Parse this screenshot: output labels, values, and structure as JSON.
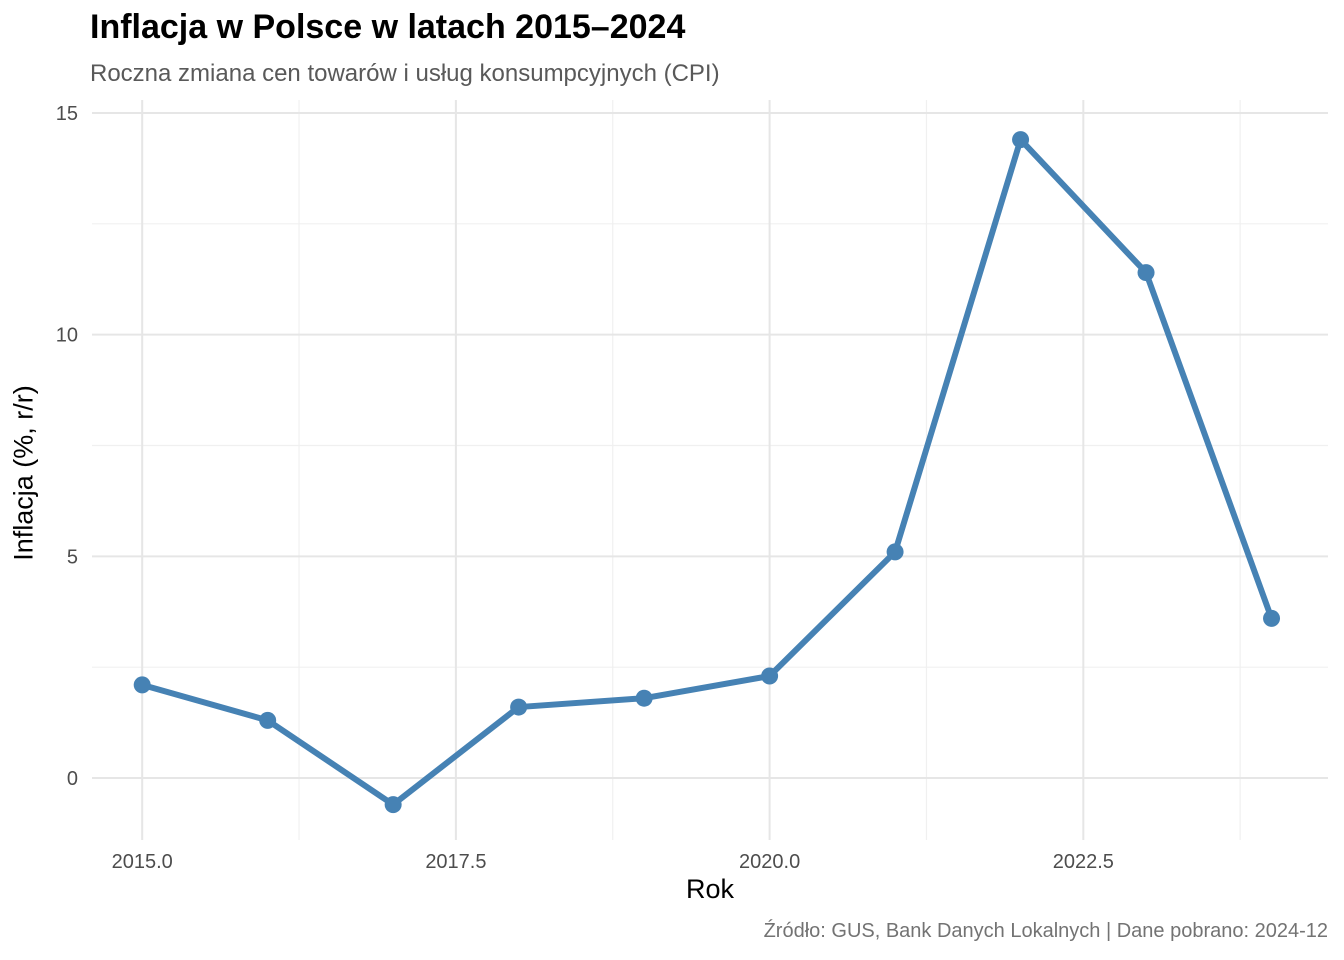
{
  "chart_data": {
    "type": "line",
    "title": "Inflacja w Polsce w latach 2015–2024",
    "subtitle": "Roczna zmiana cen towarów i usług konsumpcyjnych (CPI)",
    "caption": "Źródło: GUS, Bank Danych Lokalnych | Dane pobrano: 2024-12",
    "xlabel": "Rok",
    "ylabel": "Inflacja (%, r/r)",
    "xlim": [
      2014.6,
      2024.45
    ],
    "ylim": [
      -1.3,
      15
    ],
    "x_ticks": [
      2015.0,
      2017.5,
      2020.0,
      2022.5
    ],
    "x_tick_labels": [
      "2015.0",
      "2017.5",
      "2020.0",
      "2022.5"
    ],
    "y_ticks": [
      0,
      5,
      10,
      15
    ],
    "y_tick_labels": [
      "0",
      "5",
      "10",
      "15"
    ],
    "grid": true,
    "series": [
      {
        "color": "#4682B4",
        "x": [
          2015,
          2016,
          2017,
          2018,
          2019,
          2020,
          2021,
          2022,
          2023,
          2024
        ],
        "values": [
          2.1,
          1.3,
          -0.6,
          1.6,
          1.8,
          2.3,
          5.1,
          14.4,
          11.4,
          3.6
        ]
      }
    ]
  }
}
